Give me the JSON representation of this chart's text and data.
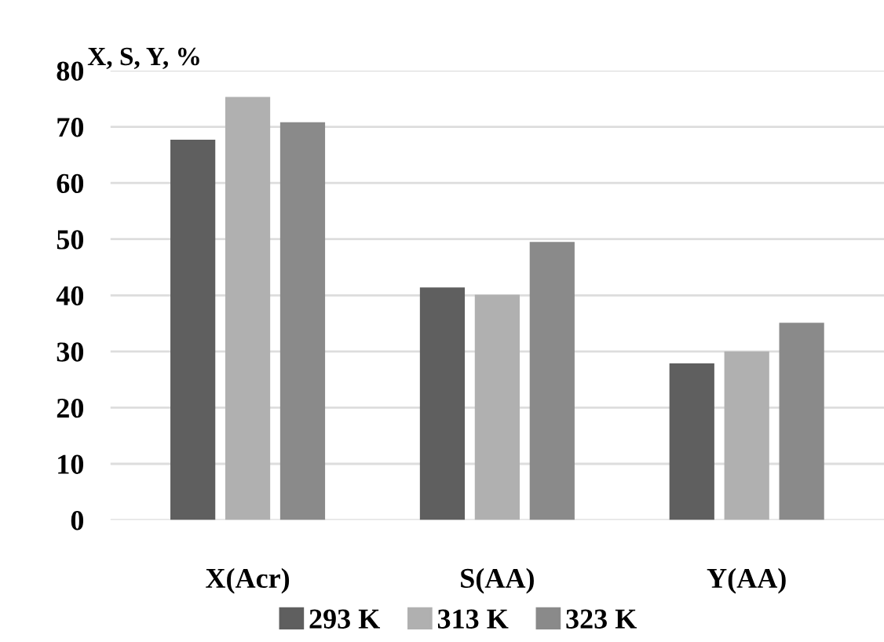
{
  "chart_data": {
    "type": "bar",
    "ylabel": "X, S, Y, %",
    "categories": [
      "X(Acr)",
      "S(AA)",
      "Y(AA)"
    ],
    "series": [
      {
        "name": "293 K",
        "color": "#5f5f5f",
        "values": [
          67.7,
          41.4,
          27.9
        ]
      },
      {
        "name": "313 K",
        "color": "#b0b0b0",
        "values": [
          75.3,
          40.1,
          30.0
        ]
      },
      {
        "name": "323 K",
        "color": "#8a8a8a",
        "values": [
          70.8,
          49.5,
          35.1
        ]
      }
    ],
    "ylim": [
      0,
      80
    ],
    "yticks": [
      0,
      10,
      20,
      30,
      40,
      50,
      60,
      70,
      80
    ],
    "grid": "y",
    "legend": "bottom"
  }
}
